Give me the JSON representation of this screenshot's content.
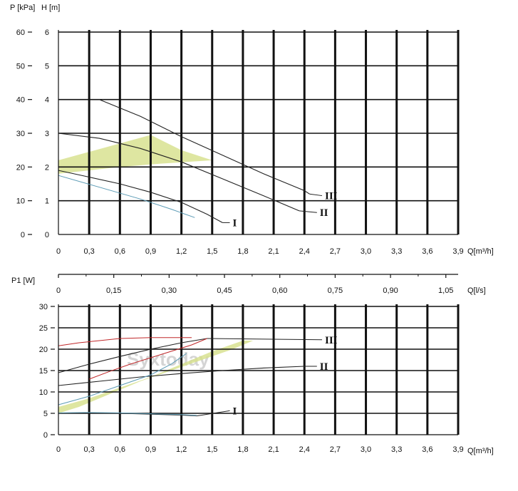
{
  "colors": {
    "grid": "#111111",
    "band": "#d6e08a",
    "curve": "#222222",
    "blue_curve": "#5b9bb5",
    "red_curve": "#c0282a",
    "speed_label": "#111111"
  },
  "chart_data": [
    {
      "type": "line",
      "title": "",
      "xlabel": "Q[m³/h]",
      "ylabel_left": "P [kPa]",
      "ylabel_right": "H [m]",
      "x_ticks": [
        "0",
        "0,3",
        "0,6",
        "0,9",
        "1,2",
        "1,5",
        "1,8",
        "2,1",
        "2,4",
        "2,7",
        "3,0",
        "3,3",
        "3,6",
        "3,9"
      ],
      "y_ticks_p": [
        "0",
        "10",
        "20",
        "30",
        "40",
        "50",
        "60"
      ],
      "y_ticks_h": [
        "0",
        "1",
        "2",
        "3",
        "4",
        "5",
        "6"
      ],
      "xlim": [
        0,
        3.9
      ],
      "ylim": [
        0,
        6
      ],
      "grid": true,
      "series": [
        {
          "name": "III",
          "x": [
            0.4,
            0.8,
            1.2,
            1.6,
            2.0,
            2.4,
            2.45
          ],
          "y": [
            4.0,
            3.5,
            2.9,
            2.35,
            1.8,
            1.3,
            1.2
          ]
        },
        {
          "name": "II",
          "x": [
            0,
            0.4,
            0.8,
            1.2,
            1.6,
            2.0,
            2.35
          ],
          "y": [
            3.0,
            2.85,
            2.55,
            2.15,
            1.65,
            1.15,
            0.7
          ]
        },
        {
          "name": "I",
          "x": [
            0,
            0.3,
            0.6,
            0.9,
            1.2,
            1.45,
            1.6
          ],
          "y": [
            1.9,
            1.7,
            1.5,
            1.25,
            0.95,
            0.6,
            0.35
          ]
        },
        {
          "name": "",
          "x": [
            0,
            0.4,
            0.8,
            1.1,
            1.33
          ],
          "y": [
            1.75,
            1.4,
            1.05,
            0.75,
            0.5
          ]
        }
      ],
      "band_outline": {
        "x": [
          0,
          0.9,
          1.2,
          1.5,
          1.0,
          0.6,
          0.3,
          0
        ],
        "y": [
          2.2,
          2.95,
          2.5,
          2.2,
          2.1,
          2.0,
          1.9,
          1.8
        ]
      },
      "annotations": [
        {
          "text": "III",
          "x": 2.6,
          "y": 1.15
        },
        {
          "text": "II",
          "x": 2.55,
          "y": 0.65
        },
        {
          "text": "I",
          "x": 1.7,
          "y": 0.35
        }
      ]
    },
    {
      "type": "line",
      "title": "",
      "xlabel": "Q[m³/h]",
      "x2label": "Q[l/s]",
      "ylabel": "P1 [W]",
      "x_ticks": [
        "0",
        "0,3",
        "0,6",
        "0,9",
        "1,2",
        "1,5",
        "1,8",
        "2,1",
        "2,4",
        "2,7",
        "3,0",
        "3,3",
        "3,6",
        "3,9"
      ],
      "x2_ticks": [
        "0",
        "0,15",
        "0,30",
        "0,45",
        "0,60",
        "0,75",
        "0,90",
        "1,05"
      ],
      "y_ticks": [
        "0",
        "5",
        "10",
        "15",
        "20",
        "25",
        "30"
      ],
      "xlim": [
        0,
        3.9
      ],
      "ylim": [
        0,
        30
      ],
      "grid": true,
      "series": [
        {
          "name": "III",
          "x": [
            0,
            0.3,
            0.6,
            0.9,
            1.2,
            1.45
          ],
          "y": [
            14.5,
            16.5,
            18.3,
            20.0,
            21.5,
            22.5
          ]
        },
        {
          "name": "II",
          "x": [
            0,
            0.4,
            0.8,
            1.2,
            1.6,
            2.0,
            2.4
          ],
          "y": [
            11.5,
            12.5,
            13.5,
            14.3,
            15.0,
            15.6,
            16.0
          ]
        },
        {
          "name": "I",
          "x": [
            0,
            0.3,
            0.6,
            0.9,
            1.2,
            1.35
          ],
          "y": [
            5.0,
            5.1,
            5.0,
            4.8,
            4.6,
            4.4
          ]
        },
        {
          "name": "",
          "x": [
            0,
            0.3,
            0.6,
            0.9,
            1.2,
            1.35
          ],
          "y": [
            5.1,
            5.2,
            5.1,
            4.9,
            4.7,
            4.5
          ]
        },
        {
          "name": "",
          "x": [
            0,
            0.2,
            0.4,
            0.6,
            0.9,
            1.2,
            1.3
          ],
          "y": [
            20.8,
            21.5,
            22.0,
            22.5,
            22.7,
            22.7,
            22.7
          ]
        },
        {
          "name": "",
          "x": [
            0.3,
            0.5,
            0.7,
            0.9,
            1.1,
            1.3,
            1.45
          ],
          "y": [
            13.0,
            14.8,
            16.5,
            18.0,
            19.5,
            21.0,
            22.5
          ]
        },
        {
          "name": "",
          "x": [
            0,
            0.3,
            0.6,
            0.9,
            1.1,
            1.25
          ],
          "y": [
            7.0,
            9.0,
            11.5,
            14.0,
            16.5,
            19.0
          ]
        }
      ],
      "band_outline": {
        "x": [
          0,
          0.3,
          0.6,
          0.9,
          1.2,
          1.5,
          1.8,
          1.9,
          1.7,
          1.4,
          1.1,
          0.8,
          0.5,
          0.2,
          0
        ],
        "y": [
          6.5,
          8.5,
          11,
          13.5,
          16.5,
          19.5,
          22,
          22,
          20,
          17.5,
          15,
          12.5,
          9.5,
          6.5,
          5
        ]
      },
      "annotations": [
        {
          "text": "III",
          "x": 2.6,
          "y": 22.2
        },
        {
          "text": "II",
          "x": 2.55,
          "y": 16.0
        },
        {
          "text": "I",
          "x": 1.7,
          "y": 5.6
        }
      ],
      "watermark": "Syxtoday"
    }
  ]
}
